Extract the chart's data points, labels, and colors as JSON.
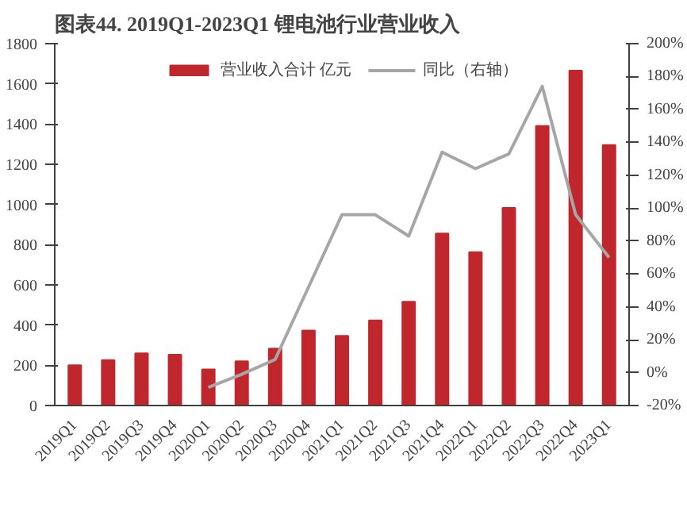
{
  "chart_data": {
    "type": "bar",
    "title": "图表44. 2019Q1-2023Q1 锂电池行业营业收入",
    "categories": [
      "2019Q1",
      "2019Q2",
      "2019Q3",
      "2019Q4",
      "2020Q1",
      "2020Q2",
      "2020Q3",
      "2020Q4",
      "2021Q1",
      "2021Q2",
      "2021Q3",
      "2021Q4",
      "2022Q1",
      "2022Q2",
      "2022Q3",
      "2022Q4",
      "2023Q1"
    ],
    "series": [
      {
        "name": "营业收入合计 亿元",
        "color": "#c0272d",
        "values": [
          200,
          226,
          260,
          253,
          180,
          220,
          283,
          373,
          346,
          423,
          516,
          856,
          763,
          983,
          1390,
          1666,
          1296
        ]
      },
      {
        "name": "同比（右轴）",
        "type": "line",
        "axis": "y2",
        "color": "#a6a6a6",
        "values": [
          null,
          null,
          null,
          null,
          -9,
          -1,
          8,
          52,
          96,
          96,
          83,
          134,
          124,
          133,
          174,
          96,
          70
        ]
      }
    ],
    "ylim": [
      0,
      1800
    ],
    "yticks": [
      0,
      200,
      400,
      600,
      800,
      1000,
      1200,
      1400,
      1600,
      1800
    ],
    "y2lim": [
      -20,
      200
    ],
    "y2ticks": [
      {
        "value": -20,
        "label": "-20%"
      },
      {
        "value": 0,
        "label": "0%"
      },
      {
        "value": 20,
        "label": "20%"
      },
      {
        "value": 40,
        "label": "40%"
      },
      {
        "value": 60,
        "label": "60%"
      },
      {
        "value": 80,
        "label": "80%"
      },
      {
        "value": 100,
        "label": "100%"
      },
      {
        "value": 120,
        "label": "120%"
      },
      {
        "value": 140,
        "label": "140%"
      },
      {
        "value": 160,
        "label": "160%"
      },
      {
        "value": 180,
        "label": "180%"
      },
      {
        "value": 200,
        "label": "200%"
      }
    ],
    "grid": false,
    "legend": "top",
    "marker": "none",
    "line_style": "solid"
  }
}
